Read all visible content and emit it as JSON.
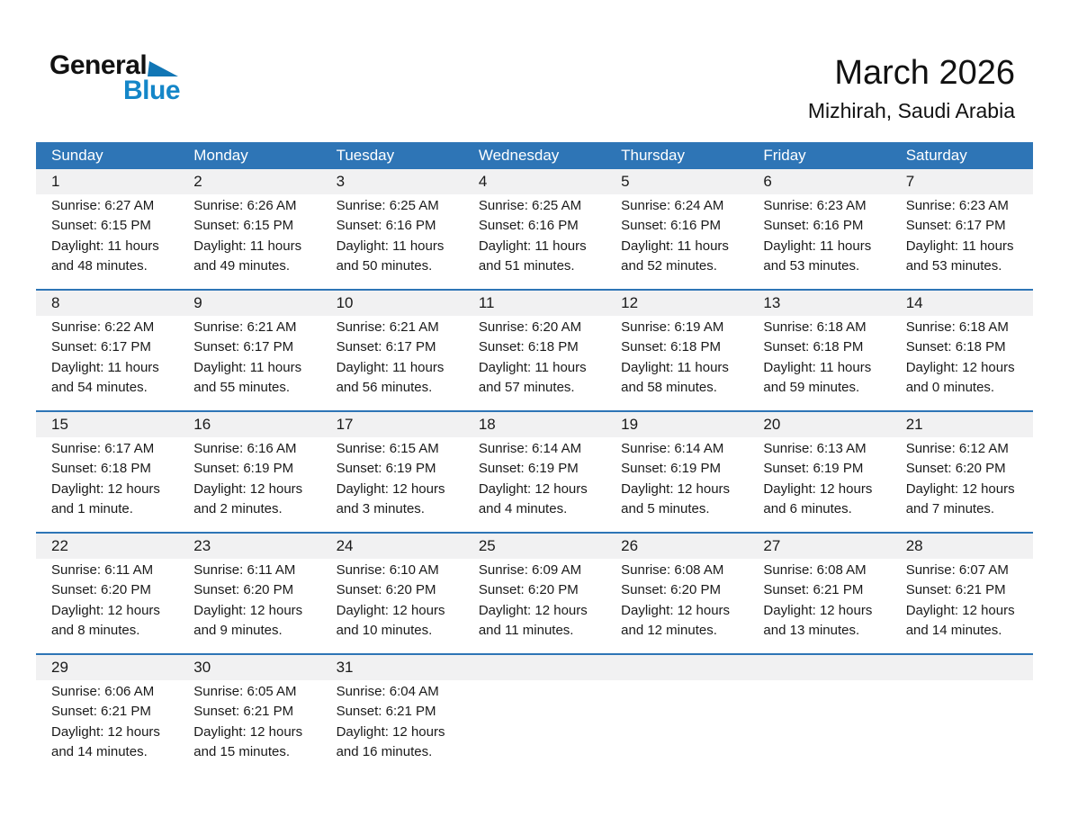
{
  "logo": {
    "text_top": "General",
    "text_bottom": "Blue"
  },
  "title": {
    "month_year": "March 2026",
    "location": "Mizhirah, Saudi Arabia"
  },
  "colors": {
    "header_blue": "#2E75B6",
    "week_separator_blue": "#2E75B6",
    "day_band_gray": "#F1F1F2",
    "logo_blue": "#1486C8",
    "weekday_text": "#FFFFFF",
    "body_text": "#1A1A1A"
  },
  "calendar": {
    "weekdays": [
      "Sunday",
      "Monday",
      "Tuesday",
      "Wednesday",
      "Thursday",
      "Friday",
      "Saturday"
    ],
    "weeks": [
      [
        {
          "day": "1",
          "lines": [
            "Sunrise: 6:27 AM",
            "Sunset: 6:15 PM",
            "Daylight: 11 hours",
            "and 48 minutes."
          ]
        },
        {
          "day": "2",
          "lines": [
            "Sunrise: 6:26 AM",
            "Sunset: 6:15 PM",
            "Daylight: 11 hours",
            "and 49 minutes."
          ]
        },
        {
          "day": "3",
          "lines": [
            "Sunrise: 6:25 AM",
            "Sunset: 6:16 PM",
            "Daylight: 11 hours",
            "and 50 minutes."
          ]
        },
        {
          "day": "4",
          "lines": [
            "Sunrise: 6:25 AM",
            "Sunset: 6:16 PM",
            "Daylight: 11 hours",
            "and 51 minutes."
          ]
        },
        {
          "day": "5",
          "lines": [
            "Sunrise: 6:24 AM",
            "Sunset: 6:16 PM",
            "Daylight: 11 hours",
            "and 52 minutes."
          ]
        },
        {
          "day": "6",
          "lines": [
            "Sunrise: 6:23 AM",
            "Sunset: 6:16 PM",
            "Daylight: 11 hours",
            "and 53 minutes."
          ]
        },
        {
          "day": "7",
          "lines": [
            "Sunrise: 6:23 AM",
            "Sunset: 6:17 PM",
            "Daylight: 11 hours",
            "and 53 minutes."
          ]
        }
      ],
      [
        {
          "day": "8",
          "lines": [
            "Sunrise: 6:22 AM",
            "Sunset: 6:17 PM",
            "Daylight: 11 hours",
            "and 54 minutes."
          ]
        },
        {
          "day": "9",
          "lines": [
            "Sunrise: 6:21 AM",
            "Sunset: 6:17 PM",
            "Daylight: 11 hours",
            "and 55 minutes."
          ]
        },
        {
          "day": "10",
          "lines": [
            "Sunrise: 6:21 AM",
            "Sunset: 6:17 PM",
            "Daylight: 11 hours",
            "and 56 minutes."
          ]
        },
        {
          "day": "11",
          "lines": [
            "Sunrise: 6:20 AM",
            "Sunset: 6:18 PM",
            "Daylight: 11 hours",
            "and 57 minutes."
          ]
        },
        {
          "day": "12",
          "lines": [
            "Sunrise: 6:19 AM",
            "Sunset: 6:18 PM",
            "Daylight: 11 hours",
            "and 58 minutes."
          ]
        },
        {
          "day": "13",
          "lines": [
            "Sunrise: 6:18 AM",
            "Sunset: 6:18 PM",
            "Daylight: 11 hours",
            "and 59 minutes."
          ]
        },
        {
          "day": "14",
          "lines": [
            "Sunrise: 6:18 AM",
            "Sunset: 6:18 PM",
            "Daylight: 12 hours",
            "and 0 minutes."
          ]
        }
      ],
      [
        {
          "day": "15",
          "lines": [
            "Sunrise: 6:17 AM",
            "Sunset: 6:18 PM",
            "Daylight: 12 hours",
            "and 1 minute."
          ]
        },
        {
          "day": "16",
          "lines": [
            "Sunrise: 6:16 AM",
            "Sunset: 6:19 PM",
            "Daylight: 12 hours",
            "and 2 minutes."
          ]
        },
        {
          "day": "17",
          "lines": [
            "Sunrise: 6:15 AM",
            "Sunset: 6:19 PM",
            "Daylight: 12 hours",
            "and 3 minutes."
          ]
        },
        {
          "day": "18",
          "lines": [
            "Sunrise: 6:14 AM",
            "Sunset: 6:19 PM",
            "Daylight: 12 hours",
            "and 4 minutes."
          ]
        },
        {
          "day": "19",
          "lines": [
            "Sunrise: 6:14 AM",
            "Sunset: 6:19 PM",
            "Daylight: 12 hours",
            "and 5 minutes."
          ]
        },
        {
          "day": "20",
          "lines": [
            "Sunrise: 6:13 AM",
            "Sunset: 6:19 PM",
            "Daylight: 12 hours",
            "and 6 minutes."
          ]
        },
        {
          "day": "21",
          "lines": [
            "Sunrise: 6:12 AM",
            "Sunset: 6:20 PM",
            "Daylight: 12 hours",
            "and 7 minutes."
          ]
        }
      ],
      [
        {
          "day": "22",
          "lines": [
            "Sunrise: 6:11 AM",
            "Sunset: 6:20 PM",
            "Daylight: 12 hours",
            "and 8 minutes."
          ]
        },
        {
          "day": "23",
          "lines": [
            "Sunrise: 6:11 AM",
            "Sunset: 6:20 PM",
            "Daylight: 12 hours",
            "and 9 minutes."
          ]
        },
        {
          "day": "24",
          "lines": [
            "Sunrise: 6:10 AM",
            "Sunset: 6:20 PM",
            "Daylight: 12 hours",
            "and 10 minutes."
          ]
        },
        {
          "day": "25",
          "lines": [
            "Sunrise: 6:09 AM",
            "Sunset: 6:20 PM",
            "Daylight: 12 hours",
            "and 11 minutes."
          ]
        },
        {
          "day": "26",
          "lines": [
            "Sunrise: 6:08 AM",
            "Sunset: 6:20 PM",
            "Daylight: 12 hours",
            "and 12 minutes."
          ]
        },
        {
          "day": "27",
          "lines": [
            "Sunrise: 6:08 AM",
            "Sunset: 6:21 PM",
            "Daylight: 12 hours",
            "and 13 minutes."
          ]
        },
        {
          "day": "28",
          "lines": [
            "Sunrise: 6:07 AM",
            "Sunset: 6:21 PM",
            "Daylight: 12 hours",
            "and 14 minutes."
          ]
        }
      ],
      [
        {
          "day": "29",
          "lines": [
            "Sunrise: 6:06 AM",
            "Sunset: 6:21 PM",
            "Daylight: 12 hours",
            "and 14 minutes."
          ]
        },
        {
          "day": "30",
          "lines": [
            "Sunrise: 6:05 AM",
            "Sunset: 6:21 PM",
            "Daylight: 12 hours",
            "and 15 minutes."
          ]
        },
        {
          "day": "31",
          "lines": [
            "Sunrise: 6:04 AM",
            "Sunset: 6:21 PM",
            "Daylight: 12 hours",
            "and 16 minutes."
          ]
        },
        null,
        null,
        null,
        null
      ]
    ]
  }
}
